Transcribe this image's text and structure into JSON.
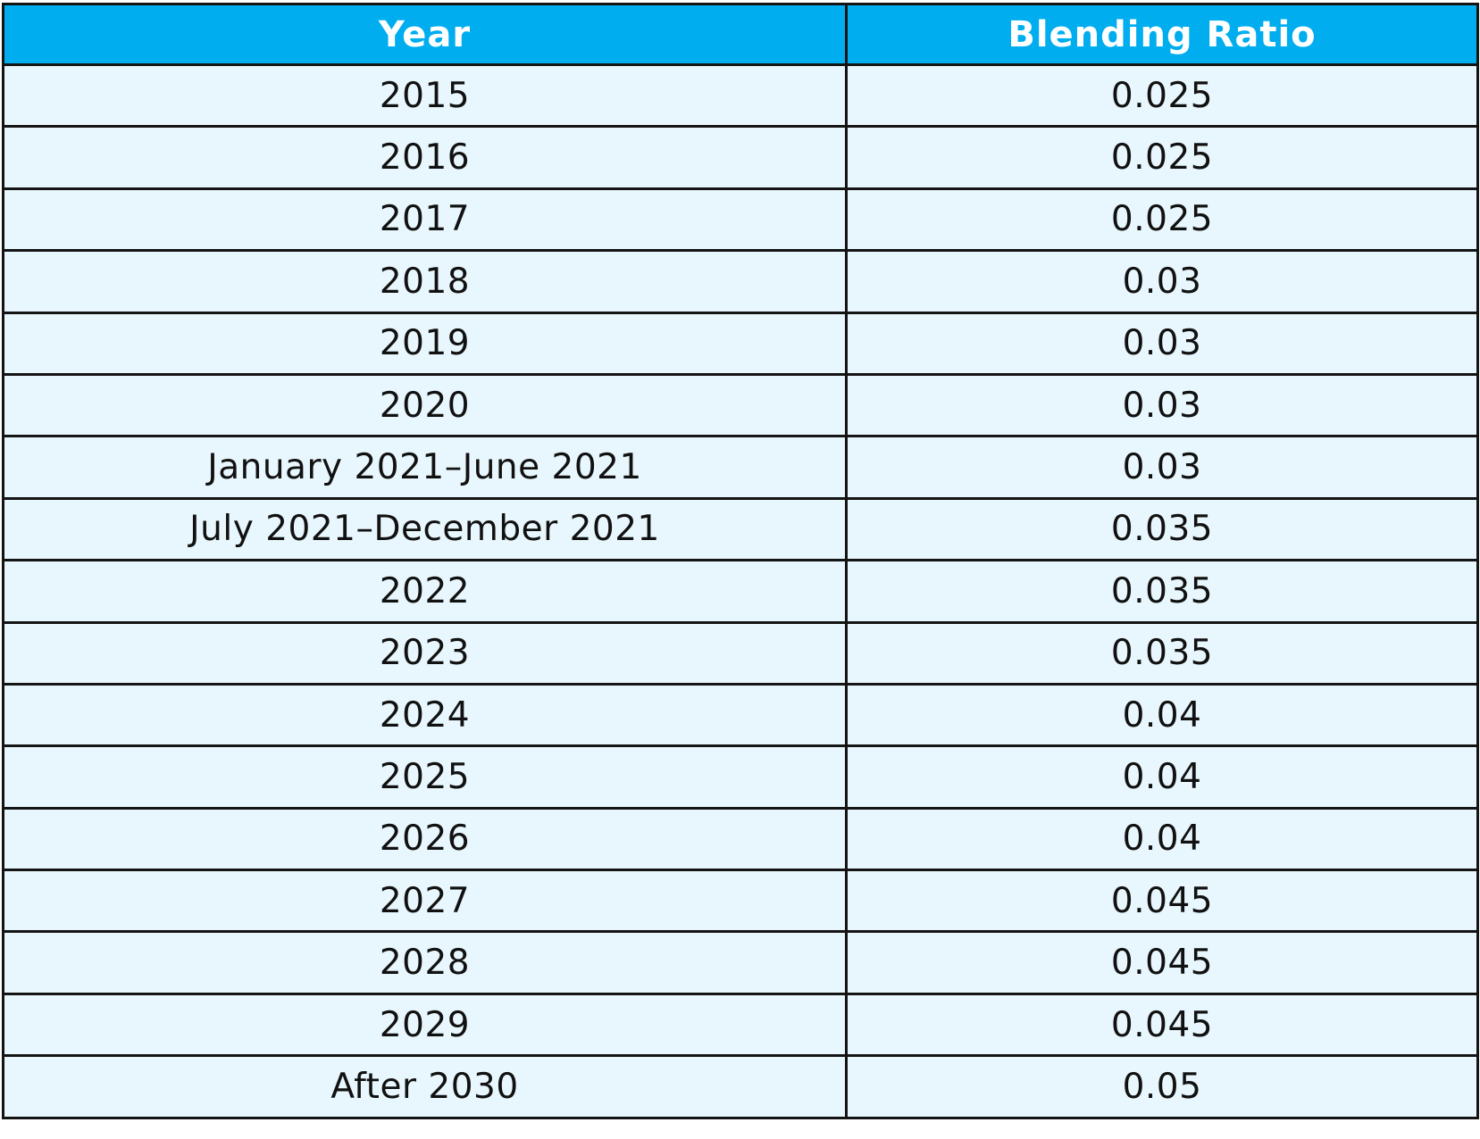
{
  "table": {
    "headers": [
      "Year",
      "Blending Ratio"
    ],
    "rows": [
      [
        "2015",
        "0.025"
      ],
      [
        "2016",
        "0.025"
      ],
      [
        "2017",
        "0.025"
      ],
      [
        "2018",
        "0.03"
      ],
      [
        "2019",
        "0.03"
      ],
      [
        "2020",
        "0.03"
      ],
      [
        "January 2021–June 2021",
        "0.03"
      ],
      [
        "July 2021–December 2021",
        "0.035"
      ],
      [
        "2022",
        "0.035"
      ],
      [
        "2023",
        "0.035"
      ],
      [
        "2024",
        "0.04"
      ],
      [
        "2025",
        "0.04"
      ],
      [
        "2026",
        "0.04"
      ],
      [
        "2027",
        "0.045"
      ],
      [
        "2028",
        "0.045"
      ],
      [
        "2029",
        "0.045"
      ],
      [
        "After 2030",
        "0.05"
      ]
    ]
  },
  "colors": {
    "header_bg": "#00ADEF",
    "header_text": "#ffffff",
    "row_bg": "#E8F7FD",
    "border": "#141414"
  }
}
